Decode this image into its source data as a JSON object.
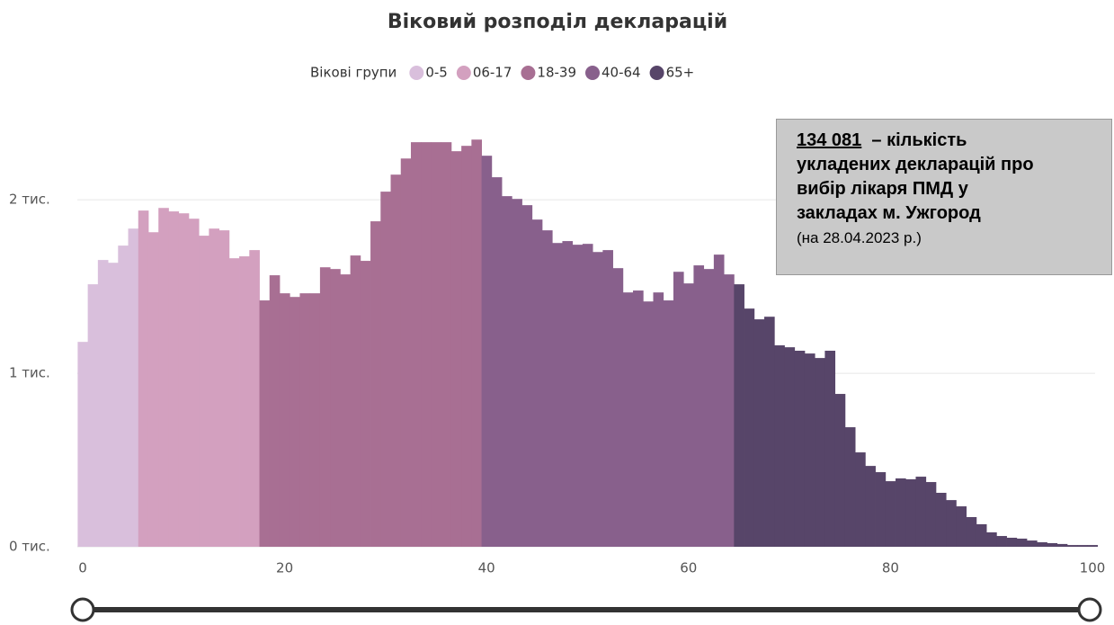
{
  "chart_data": {
    "type": "bar",
    "title": "Віковий розподіл декларацій",
    "legend_title": "Вікові групи",
    "series": [
      {
        "name": "0-5",
        "color": "#d9bfdc",
        "x": [
          0,
          1,
          2,
          3,
          4,
          5
        ],
        "values": [
          1181,
          1513,
          1653,
          1637,
          1736,
          1834
        ]
      },
      {
        "name": "06-17",
        "color": "#d3a0bf",
        "x": [
          6,
          7,
          8,
          9,
          10,
          11,
          12,
          13,
          14,
          15,
          16,
          17
        ],
        "values": [
          1938,
          1813,
          1953,
          1933,
          1922,
          1891,
          1793,
          1834,
          1824,
          1663,
          1674,
          1710
        ]
      },
      {
        "name": "18-39",
        "color": "#a86f93",
        "x": [
          18,
          19,
          20,
          21,
          22,
          23,
          24,
          25,
          26,
          27,
          28,
          29,
          30,
          31,
          32,
          33,
          34,
          35,
          36,
          37,
          38,
          39
        ],
        "values": [
          1420,
          1565,
          1461,
          1440,
          1461,
          1461,
          1611,
          1601,
          1570,
          1679,
          1648,
          1876,
          2047,
          2145,
          2238,
          2332,
          2332,
          2332,
          2332,
          2280,
          2311,
          2347
        ]
      },
      {
        "name": "40-64",
        "color": "#88608c",
        "x": [
          40,
          41,
          42,
          43,
          44,
          45,
          46,
          47,
          48,
          49,
          50,
          51,
          52,
          53,
          54,
          55,
          56,
          57,
          58,
          59,
          60,
          61,
          62,
          63,
          64
        ],
        "values": [
          2254,
          2130,
          2021,
          2005,
          1969,
          1886,
          1824,
          1751,
          1762,
          1741,
          1746,
          1699,
          1710,
          1606,
          1466,
          1477,
          1414,
          1466,
          1420,
          1585,
          1518,
          1622,
          1601,
          1684,
          1570
        ]
      },
      {
        "name": "65+",
        "color": "#574569",
        "x": [
          65,
          66,
          67,
          68,
          69,
          70,
          71,
          72,
          73,
          74,
          75,
          76,
          77,
          78,
          79,
          80,
          81,
          82,
          83,
          84,
          85,
          86,
          87,
          88,
          89,
          90,
          91,
          92,
          93,
          94,
          95,
          96,
          97,
          98,
          99,
          100
        ],
        "values": [
          1513,
          1373,
          1311,
          1326,
          1161,
          1150,
          1130,
          1114,
          1088,
          1130,
          881,
          689,
          544,
          466,
          430,
          378,
          394,
          389,
          404,
          373,
          311,
          269,
          233,
          171,
          130,
          83,
          62,
          52,
          47,
          36,
          26,
          21,
          16,
          10,
          10,
          10
        ]
      }
    ],
    "xlim": [
      0,
      100
    ],
    "xticks": [
      0,
      20,
      40,
      60,
      80,
      100
    ],
    "ylim": [
      0,
      2400
    ],
    "yticks": [
      {
        "value": 0,
        "label": "0 тис."
      },
      {
        "value": 1000,
        "label": "1 тис."
      },
      {
        "value": 2000,
        "label": "2 тис."
      }
    ],
    "grid": true,
    "annotation": {
      "number": "134 081",
      "lines": [
        "– кількість",
        "укладених декларацій про",
        "вибір лікаря ПМД у",
        "закладах м. Ужгород"
      ],
      "note": "(на 28.04.2023 р.)"
    }
  }
}
